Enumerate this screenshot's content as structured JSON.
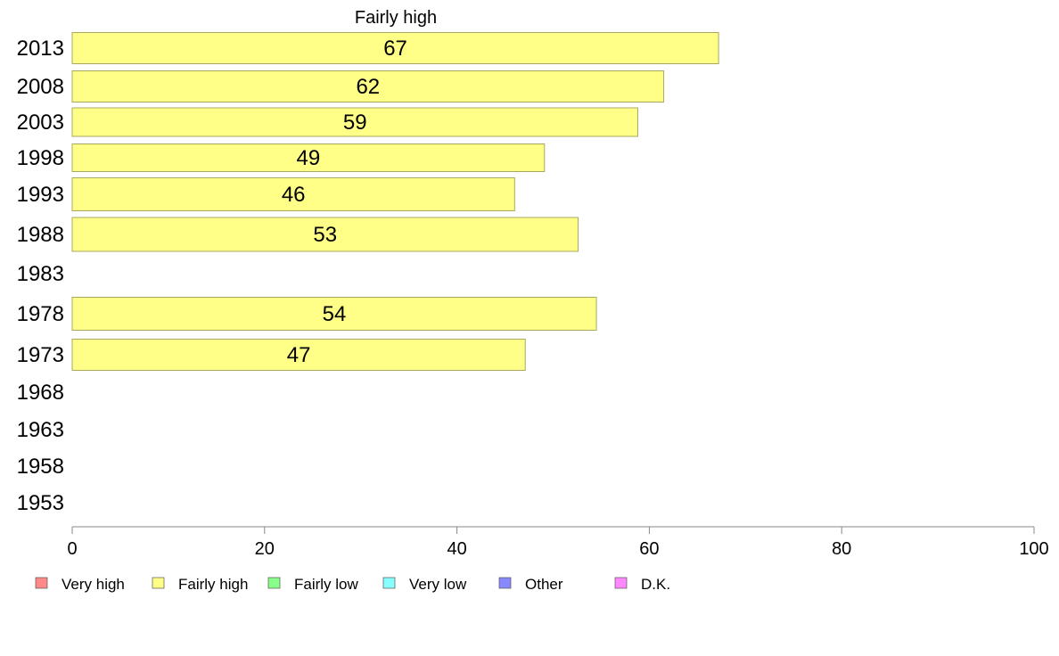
{
  "chart_data": {
    "type": "bar",
    "orientation": "horizontal",
    "title": "Fairly high",
    "categories": [
      "2013",
      "2008",
      "2003",
      "1998",
      "1993",
      "1988",
      "1983",
      "1978",
      "1973",
      "1968",
      "1963",
      "1958",
      "1953"
    ],
    "series": [
      {
        "name": "Fairly high",
        "color": "#ffff88",
        "values": [
          67.2,
          61.5,
          58.8,
          49.1,
          46.0,
          52.6,
          null,
          54.5,
          47.1,
          null,
          null,
          null,
          null
        ],
        "labels": [
          "67",
          "62",
          "59",
          "49",
          "46",
          "53",
          "",
          "54",
          "47",
          "",
          "",
          "",
          ""
        ]
      }
    ],
    "xlim": [
      0,
      100
    ],
    "xticks": [
      0,
      20,
      40,
      60,
      80,
      100
    ],
    "grid": false,
    "legend": {
      "placement": "bottom",
      "items": [
        {
          "label": "Very high",
          "color": "#ff8888"
        },
        {
          "label": "Fairly high",
          "color": "#ffff88"
        },
        {
          "label": "Fairly low",
          "color": "#88ff88"
        },
        {
          "label": "Very low",
          "color": "#88ffff"
        },
        {
          "label": "Other",
          "color": "#8888ff"
        },
        {
          "label": "D.K.",
          "color": "#ff88ff"
        }
      ]
    }
  }
}
